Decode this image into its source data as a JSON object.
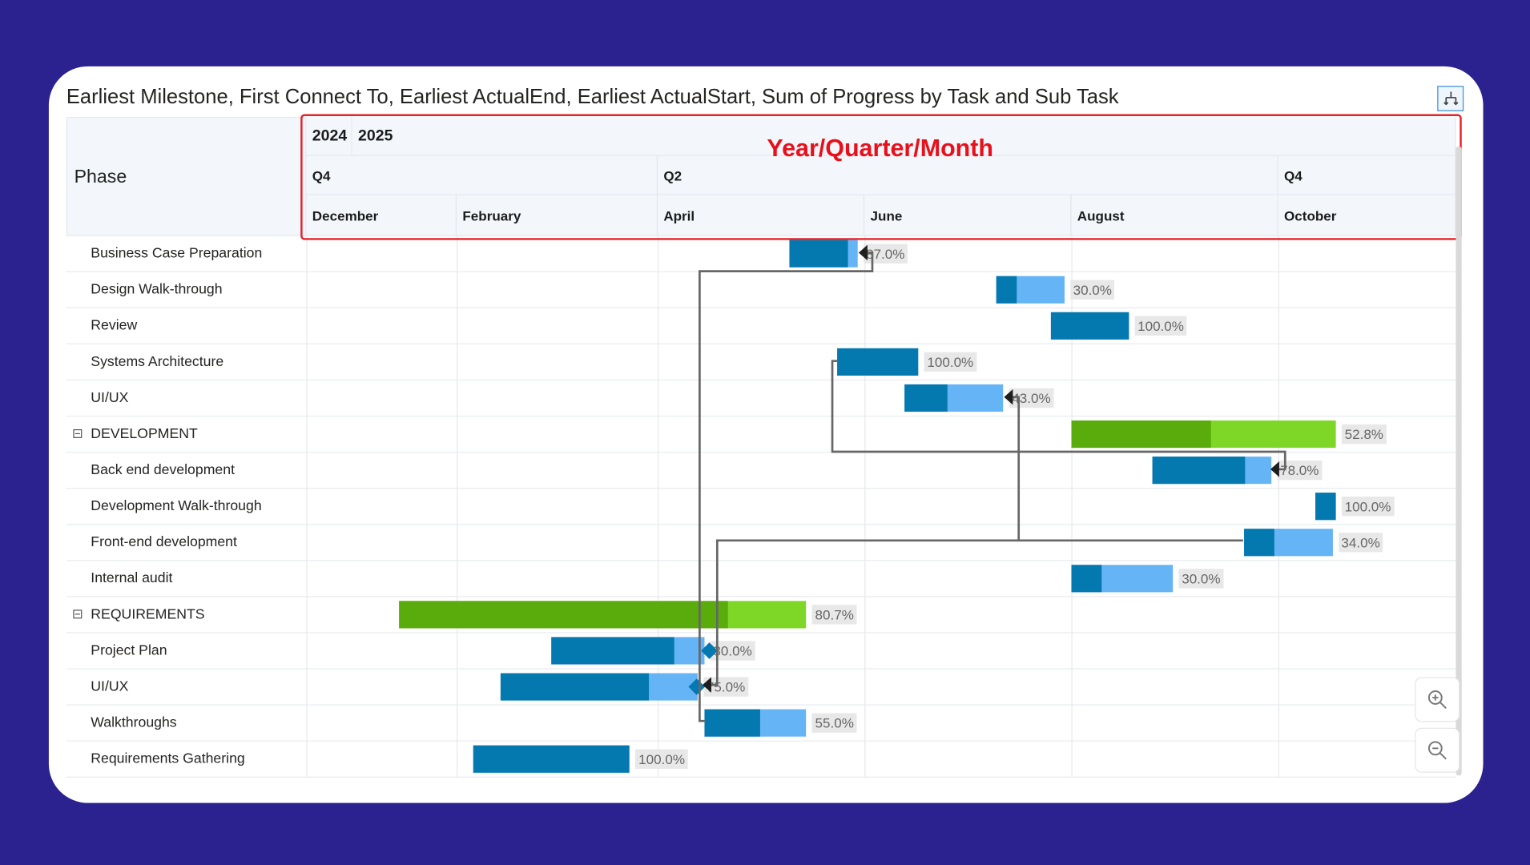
{
  "title": "Earliest Milestone, First Connect To, Earliest ActualEnd, Earliest ActualStart, Sum of Progress by Task and Sub Task",
  "header": {
    "phase_label": "Phase",
    "years": [
      "2024",
      "2025"
    ],
    "quarters": [
      "Q4",
      "Q2",
      "Q4"
    ],
    "months": [
      "December",
      "February",
      "April",
      "June",
      "August",
      "October"
    ]
  },
  "annotation": "Year/Quarter/Month",
  "icons": {
    "download": "download-hierarchy-icon",
    "zoom_in": "zoom-in-icon",
    "zoom_out": "zoom-out-icon",
    "collapse": "collapse-minus-icon"
  },
  "colors": {
    "task_done": "#0479b0",
    "task_remaining": "#64b4f6",
    "group_done": "#5aab0c",
    "group_remaining": "#7ed626",
    "connector": "#666666",
    "background": "#2b2290",
    "annotation": "#e8101a"
  },
  "chart_data": {
    "type": "bar",
    "subtype": "gantt",
    "x_axis": "time",
    "tasks": [
      {
        "name": "Business Case Preparation",
        "group": false,
        "start": "2025-05-10",
        "end": "2025-05-30",
        "progress": 87.0,
        "label": "87.0%"
      },
      {
        "name": "Design Walk-through",
        "group": false,
        "start": "2025-07-10",
        "end": "2025-07-30",
        "progress": 30.0,
        "label": "30.0%"
      },
      {
        "name": "Review",
        "group": false,
        "start": "2025-07-26",
        "end": "2025-08-18",
        "progress": 100.0,
        "label": "100.0%"
      },
      {
        "name": "Systems Architecture",
        "group": false,
        "start": "2025-05-24",
        "end": "2025-06-17",
        "progress": 100.0,
        "label": "100.0%"
      },
      {
        "name": "UI/UX",
        "group": false,
        "start": "2025-06-13",
        "end": "2025-07-12",
        "progress": 43.0,
        "label": "43.0%"
      },
      {
        "name": "DEVELOPMENT",
        "group": true,
        "start": "2025-08-01",
        "end": "2025-10-18",
        "progress": 52.8,
        "label": "52.8%"
      },
      {
        "name": "Back end development",
        "group": false,
        "start": "2025-08-25",
        "end": "2025-09-29",
        "progress": 78.0,
        "label": "78.0%"
      },
      {
        "name": "Development Walk-through",
        "group": false,
        "start": "2025-10-12",
        "end": "2025-10-18",
        "progress": 100.0,
        "label": "100.0%"
      },
      {
        "name": "Front-end development",
        "group": false,
        "start": "2025-09-21",
        "end": "2025-10-17",
        "progress": 34.0,
        "label": "34.0%"
      },
      {
        "name": "Internal audit",
        "group": false,
        "start": "2025-08-01",
        "end": "2025-08-31",
        "progress": 30.0,
        "label": "30.0%"
      },
      {
        "name": "REQUIREMENTS",
        "group": true,
        "start": "2025-01-15",
        "end": "2025-05-15",
        "progress": 80.7,
        "label": "80.7%"
      },
      {
        "name": "Project Plan",
        "group": false,
        "start": "2025-03-01",
        "end": "2025-04-15",
        "progress": 80.0,
        "label": "80.0%",
        "milestone": true
      },
      {
        "name": "UI/UX",
        "group": false,
        "start": "2025-02-14",
        "end": "2025-04-13",
        "progress": 75.0,
        "label": "75.0%",
        "milestone": true
      },
      {
        "name": "Walkthroughs",
        "group": false,
        "start": "2025-04-15",
        "end": "2025-05-15",
        "progress": 55.0,
        "label": "55.0%"
      },
      {
        "name": "Requirements Gathering",
        "group": false,
        "start": "2025-02-06",
        "end": "2025-03-24",
        "progress": 100.0,
        "label": "100.0%"
      }
    ],
    "dependencies": [
      {
        "from": "Walkthroughs",
        "to": "Business Case Preparation"
      },
      {
        "from": "Systems Architecture",
        "to": "Back end development"
      },
      {
        "from": "Front-end development",
        "to": "UI/UX"
      },
      {
        "from": "Front-end development",
        "to": "UI/UX (Requirements)"
      }
    ]
  }
}
